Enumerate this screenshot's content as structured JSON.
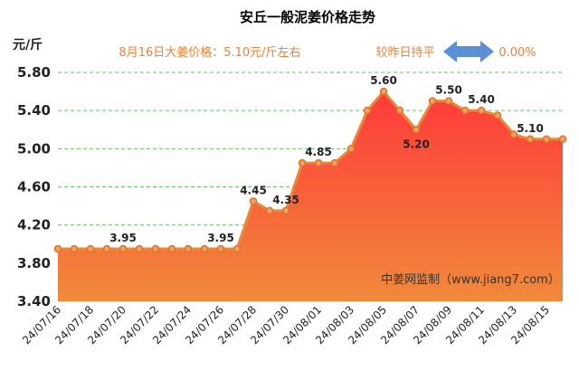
{
  "chart_data": {
    "type": "area",
    "title": "安丘一般泥姜价格走势",
    "subtitle_left": "8月16日大姜价格：5.10元/斤左右",
    "subtitle_right_label": "较昨日持平",
    "subtitle_right_value": "0.00%",
    "ylabel": "元/斤",
    "ylim": [
      3.4,
      5.8
    ],
    "yticks": [
      "5.80",
      "5.40",
      "5.00",
      "4.60",
      "4.20",
      "3.80",
      "3.40"
    ],
    "x": [
      "24/07/16",
      "24/07/17",
      "24/07/18",
      "24/07/19",
      "24/07/20",
      "24/07/21",
      "24/07/22",
      "24/07/23",
      "24/07/24",
      "24/07/25",
      "24/07/26",
      "24/07/27",
      "24/07/28",
      "24/07/29",
      "24/07/30",
      "24/07/31",
      "24/08/01",
      "24/08/02",
      "24/08/03",
      "24/08/04",
      "24/08/05",
      "24/08/06",
      "24/08/07",
      "24/08/08",
      "24/08/09",
      "24/08/10",
      "24/08/11",
      "24/08/12",
      "24/08/13",
      "24/08/14",
      "24/08/15",
      "24/08/16"
    ],
    "xtick_labels": [
      "24/07/16",
      "24/07/18",
      "24/07/20",
      "24/07/22",
      "24/07/24",
      "24/07/26",
      "24/07/28",
      "24/07/30",
      "24/08/01",
      "24/08/03",
      "24/08/05",
      "24/08/07",
      "24/08/09",
      "24/08/11",
      "24/08/13",
      "24/08/15"
    ],
    "values": [
      3.95,
      3.95,
      3.95,
      3.95,
      3.95,
      3.95,
      3.95,
      3.95,
      3.95,
      3.95,
      3.95,
      3.95,
      4.45,
      4.35,
      4.35,
      4.85,
      4.85,
      4.85,
      5.0,
      5.4,
      5.6,
      5.4,
      5.2,
      5.5,
      5.5,
      5.4,
      5.4,
      5.35,
      5.15,
      5.1,
      5.1,
      5.1
    ],
    "data_labels": [
      {
        "index": 4,
        "text": "3.95"
      },
      {
        "index": 10,
        "text": "3.95"
      },
      {
        "index": 12,
        "text": "4.45"
      },
      {
        "index": 14,
        "text": "4.35"
      },
      {
        "index": 16,
        "text": "4.85"
      },
      {
        "index": 20,
        "text": "5.60"
      },
      {
        "index": 22,
        "text": "5.20"
      },
      {
        "index": 24,
        "text": "5.50"
      },
      {
        "index": 26,
        "text": "5.40"
      },
      {
        "index": 29,
        "text": "5.10"
      }
    ],
    "watermark": "中姜网监制（www.jiang7.com）",
    "grid": true,
    "colors": {
      "fill_top": "#ff3a3a",
      "fill_bottom": "#f08a3a",
      "line": "#e8883a",
      "arrow": "#5b8fd6",
      "text_accent": "#e8833a",
      "grid": "#6fbf6f"
    }
  }
}
